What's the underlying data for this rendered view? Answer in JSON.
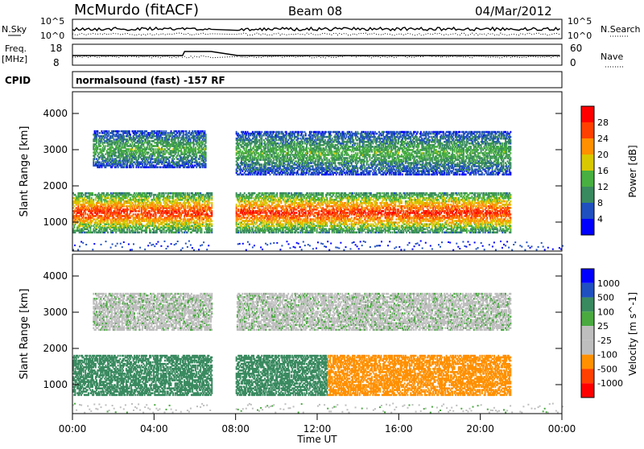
{
  "header": {
    "station": "McMurdo (fitACF)",
    "beam": "Beam 08",
    "date": "04/Mar/2012"
  },
  "strip_labels": {
    "nsky_label": "N.Sky",
    "nsky_top": "10^5",
    "nsky_bottom": "10^0",
    "nsearch_label": "N.Search",
    "nsearch_top": "10^5",
    "nsearch_bottom": "10^0",
    "freq_label": "Freq.",
    "freq_unit": "[MHz]",
    "freq_top": "18",
    "freq_bottom": "8",
    "nave_label": "Nave",
    "nave_top": "60",
    "nave_bottom": "0",
    "cpid_label": "CPID",
    "cpid_text": "normalsound (fast) -157 RF"
  },
  "time_axis": {
    "label": "Time UT",
    "ticks": [
      "00:00",
      "04:00",
      "08:00",
      "12:00",
      "16:00",
      "20:00",
      "00:00"
    ]
  },
  "colors": {
    "power": [
      "#0000ff",
      "#2050c0",
      "#3a8a60",
      "#48b040",
      "#d8c800",
      "#ff9000",
      "#ff4000",
      "#ff0000"
    ],
    "velocity": [
      "#ff0000",
      "#ff4000",
      "#ff9000",
      "#bebebe",
      "#bebebe",
      "#4aaa40",
      "#3a8a60",
      "#2050c0",
      "#0000ff"
    ]
  },
  "chart_data": [
    {
      "type": "heatmap",
      "panel": "power",
      "xlabel": "Time UT",
      "ylabel": "Slant Range [km]",
      "xlim": [
        "00:00",
        "24:00"
      ],
      "ylim": [
        200,
        4600
      ],
      "yticks": [
        1000,
        2000,
        3000,
        4000
      ],
      "colorbar": {
        "label": "Power [dB]",
        "ticks": [
          4,
          8,
          12,
          16,
          20,
          24,
          28
        ],
        "range": [
          0,
          32
        ]
      },
      "data_gaps_hours": [
        [
          6.8,
          8.0
        ],
        [
          21.7,
          21.9
        ]
      ],
      "echo_bands": [
        {
          "range_km": [
            700,
            1800
          ],
          "peak_power_db": 28,
          "time_hours": [
            0,
            6.8
          ]
        },
        {
          "range_km": [
            2500,
            3500
          ],
          "peak_power_db": 14,
          "time_hours": [
            1,
            6.5
          ]
        },
        {
          "range_km": [
            700,
            1800
          ],
          "peak_power_db": 28,
          "time_hours": [
            8,
            21.5
          ]
        },
        {
          "range_km": [
            2300,
            3500
          ],
          "peak_power_db": 14,
          "time_hours": [
            8,
            21.5
          ]
        }
      ]
    },
    {
      "type": "heatmap",
      "panel": "velocity",
      "xlabel": "Time UT",
      "ylabel": "Slant Range [km]",
      "xlim": [
        "00:00",
        "24:00"
      ],
      "ylim": [
        200,
        4600
      ],
      "yticks": [
        1000,
        2000,
        3000,
        4000
      ],
      "colorbar": {
        "label": "Velocity [m s^-1]",
        "ticks": [
          1000,
          500,
          100,
          25,
          -25,
          -100,
          -500,
          -1000
        ]
      },
      "echo_bands": [
        {
          "range_km": [
            700,
            1800
          ],
          "velocity_ms": 300,
          "time_hours": [
            0,
            6.8
          ]
        },
        {
          "range_km": [
            700,
            1800
          ],
          "velocity_ms": 200,
          "time_hours": [
            8,
            12.5
          ]
        },
        {
          "range_km": [
            700,
            1800
          ],
          "velocity_ms": -200,
          "time_hours": [
            12.5,
            21.5
          ]
        },
        {
          "range_km": [
            2500,
            3500
          ],
          "velocity_ms": 0,
          "time_hours": [
            1,
            21.5
          ]
        }
      ]
    }
  ]
}
